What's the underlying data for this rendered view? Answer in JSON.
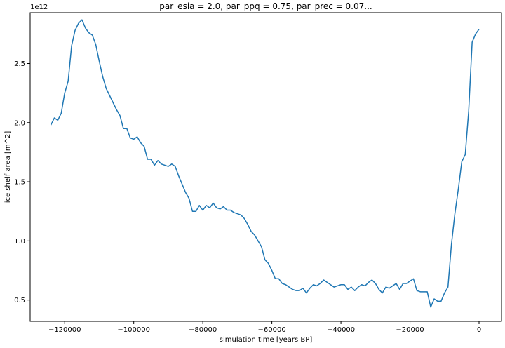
{
  "chart_data": {
    "type": "line",
    "title": "par_esia = 2.0, par_ppq = 0.75, par_prec = 0.07...",
    "xlabel": "simulation time [years BP]",
    "ylabel": "ice shelf area [m^2]",
    "y_offset_label": "1e12",
    "xlim": [
      -130000,
      6500
    ],
    "ylim": [
      0.32,
      2.93
    ],
    "x_ticks": [
      -120000,
      -100000,
      -80000,
      -60000,
      -40000,
      -20000,
      0
    ],
    "x_tick_labels": [
      "−120000",
      "−100000",
      "−80000",
      "−60000",
      "−40000",
      "−20000",
      "0"
    ],
    "y_ticks": [
      0.5,
      1.0,
      1.5,
      2.0,
      2.5
    ],
    "y_tick_labels": [
      "0.5",
      "1.0",
      "1.5",
      "2.0",
      "2.5"
    ],
    "grid": false,
    "series": [
      {
        "color": "#1f77b4",
        "x": [
          -124000,
          -123000,
          -122000,
          -121000,
          -120000,
          -119000,
          -118000,
          -117000,
          -116000,
          -115000,
          -114000,
          -113000,
          -112000,
          -111000,
          -110000,
          -109000,
          -108000,
          -107000,
          -106000,
          -105000,
          -104000,
          -103000,
          -102000,
          -101000,
          -100000,
          -99000,
          -98000,
          -97000,
          -96000,
          -95000,
          -94000,
          -93000,
          -92000,
          -91000,
          -90000,
          -89000,
          -88000,
          -87000,
          -86000,
          -85000,
          -84000,
          -83000,
          -82000,
          -81000,
          -80000,
          -79000,
          -78000,
          -77000,
          -76000,
          -75000,
          -74000,
          -73000,
          -72000,
          -71000,
          -70000,
          -69000,
          -68000,
          -67000,
          -66000,
          -65000,
          -64000,
          -63000,
          -62000,
          -61000,
          -60000,
          -59000,
          -58000,
          -57000,
          -56000,
          -55000,
          -54000,
          -53000,
          -52000,
          -51000,
          -50000,
          -49000,
          -48000,
          -47000,
          -46000,
          -45000,
          -44000,
          -43000,
          -42000,
          -41000,
          -40000,
          -39000,
          -38000,
          -37000,
          -36000,
          -35000,
          -34000,
          -33000,
          -32000,
          -31000,
          -30000,
          -29000,
          -28000,
          -27000,
          -26000,
          -25000,
          -24000,
          -23000,
          -22000,
          -21000,
          -20000,
          -19000,
          -18000,
          -17000,
          -16000,
          -15000,
          -14000,
          -13000,
          -12000,
          -11000,
          -10000,
          -9000,
          -8000,
          -7000,
          -6000,
          -5000,
          -4000,
          -3000,
          -2000,
          -1000,
          0
        ],
        "values": [
          1.98,
          2.04,
          2.02,
          2.08,
          2.25,
          2.35,
          2.65,
          2.78,
          2.84,
          2.87,
          2.8,
          2.76,
          2.74,
          2.66,
          2.52,
          2.39,
          2.29,
          2.23,
          2.17,
          2.11,
          2.06,
          1.95,
          1.95,
          1.87,
          1.86,
          1.88,
          1.83,
          1.8,
          1.69,
          1.69,
          1.64,
          1.68,
          1.65,
          1.64,
          1.63,
          1.65,
          1.63,
          1.55,
          1.48,
          1.41,
          1.36,
          1.25,
          1.25,
          1.3,
          1.26,
          1.3,
          1.28,
          1.32,
          1.28,
          1.27,
          1.29,
          1.26,
          1.26,
          1.24,
          1.23,
          1.22,
          1.19,
          1.14,
          1.08,
          1.05,
          1.0,
          0.95,
          0.84,
          0.81,
          0.75,
          0.68,
          0.68,
          0.64,
          0.63,
          0.61,
          0.59,
          0.58,
          0.58,
          0.6,
          0.56,
          0.6,
          0.63,
          0.62,
          0.64,
          0.67,
          0.65,
          0.63,
          0.61,
          0.62,
          0.63,
          0.63,
          0.59,
          0.61,
          0.58,
          0.61,
          0.63,
          0.62,
          0.65,
          0.67,
          0.64,
          0.59,
          0.56,
          0.61,
          0.6,
          0.62,
          0.64,
          0.59,
          0.64,
          0.64,
          0.66,
          0.68,
          0.58,
          0.57,
          0.57,
          0.57,
          0.44,
          0.51,
          0.49,
          0.49,
          0.56,
          0.61,
          0.97,
          1.23,
          1.44,
          1.67,
          1.73,
          2.1,
          2.68,
          2.75,
          2.79
        ]
      }
    ]
  }
}
